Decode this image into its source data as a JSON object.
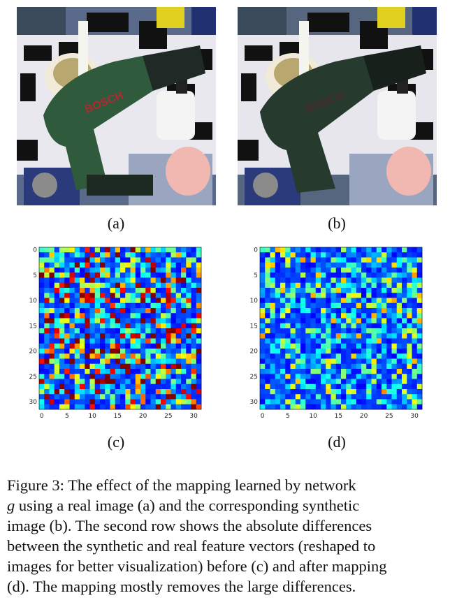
{
  "panels": {
    "a": {
      "label": "(a)",
      "brand_text": "BOSCH"
    },
    "b": {
      "label": "(b)",
      "brand_text": "BOSCH"
    },
    "c": {
      "label": "(c)"
    },
    "d": {
      "label": "(d)"
    }
  },
  "heatmaps": {
    "c": {
      "y_ticks": [
        "0",
        "5",
        "10",
        "15",
        "20",
        "25",
        "30"
      ],
      "x_ticks": [
        "0",
        "5",
        "10",
        "15",
        "20",
        "25",
        "30"
      ]
    },
    "d": {
      "y_ticks": [
        "0",
        "5",
        "10",
        "15",
        "20",
        "25",
        "30"
      ],
      "x_ticks": [
        "0",
        "5",
        "10",
        "15",
        "20",
        "25",
        "30"
      ]
    }
  },
  "colors": {
    "heat_low": "#00007f",
    "heat_mid": "#0000ff",
    "heat_high": "#7f0000"
  },
  "caption": {
    "lines": [
      {
        "pre": "Figure 3:   The effect of the mapping learned by network",
        "var": "",
        "post": ""
      },
      {
        "pre": "",
        "var": "g",
        "post": " using a real image (a) and the corresponding synthetic"
      },
      {
        "pre": "image (b).  The second row shows the absolute differences",
        "var": "",
        "post": ""
      },
      {
        "pre": "between the synthetic and real feature vectors (reshaped to",
        "var": "",
        "post": ""
      },
      {
        "pre": "images for better visualization) before (c) and after mapping",
        "var": "",
        "post": ""
      },
      {
        "pre": "(d). The mapping mostly removes the large differences.",
        "var": "",
        "post": ""
      }
    ]
  }
}
